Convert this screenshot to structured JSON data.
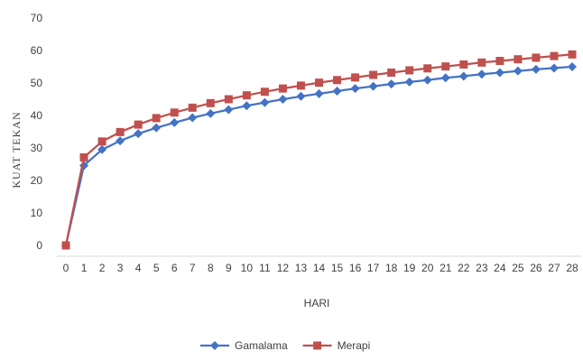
{
  "chart_data": {
    "type": "line",
    "xlabel": "HARI",
    "ylabel": "KUAT TEKAN",
    "ylim": [
      0,
      70
    ],
    "yticks": [
      0,
      10,
      20,
      30,
      40,
      50,
      60,
      70
    ],
    "x": [
      0,
      1,
      2,
      3,
      4,
      5,
      6,
      7,
      8,
      9,
      10,
      11,
      12,
      13,
      14,
      15,
      16,
      17,
      18,
      19,
      20,
      21,
      22,
      23,
      24,
      25,
      26,
      27,
      28
    ],
    "grid": false,
    "legend_position": "bottom",
    "series": [
      {
        "name": "Gamalama",
        "color": "#4472c4",
        "marker": "diamond",
        "values": [
          0,
          24.6,
          29.5,
          32.2,
          34.4,
          36.2,
          37.8,
          39.3,
          40.6,
          41.8,
          43.0,
          44.0,
          45.0,
          45.9,
          46.7,
          47.5,
          48.3,
          49.0,
          49.7,
          50.3,
          50.9,
          51.6,
          52.1,
          52.7,
          53.2,
          53.7,
          54.2,
          54.6,
          55.0
        ]
      },
      {
        "name": "Merapi",
        "color": "#c0504d",
        "marker": "square",
        "values": [
          0,
          27.1,
          32.0,
          34.9,
          37.2,
          39.2,
          40.9,
          42.4,
          43.8,
          45.0,
          46.2,
          47.3,
          48.3,
          49.2,
          50.1,
          50.9,
          51.7,
          52.5,
          53.2,
          53.9,
          54.5,
          55.1,
          55.7,
          56.3,
          56.8,
          57.3,
          57.8,
          58.3,
          58.8
        ]
      }
    ]
  }
}
